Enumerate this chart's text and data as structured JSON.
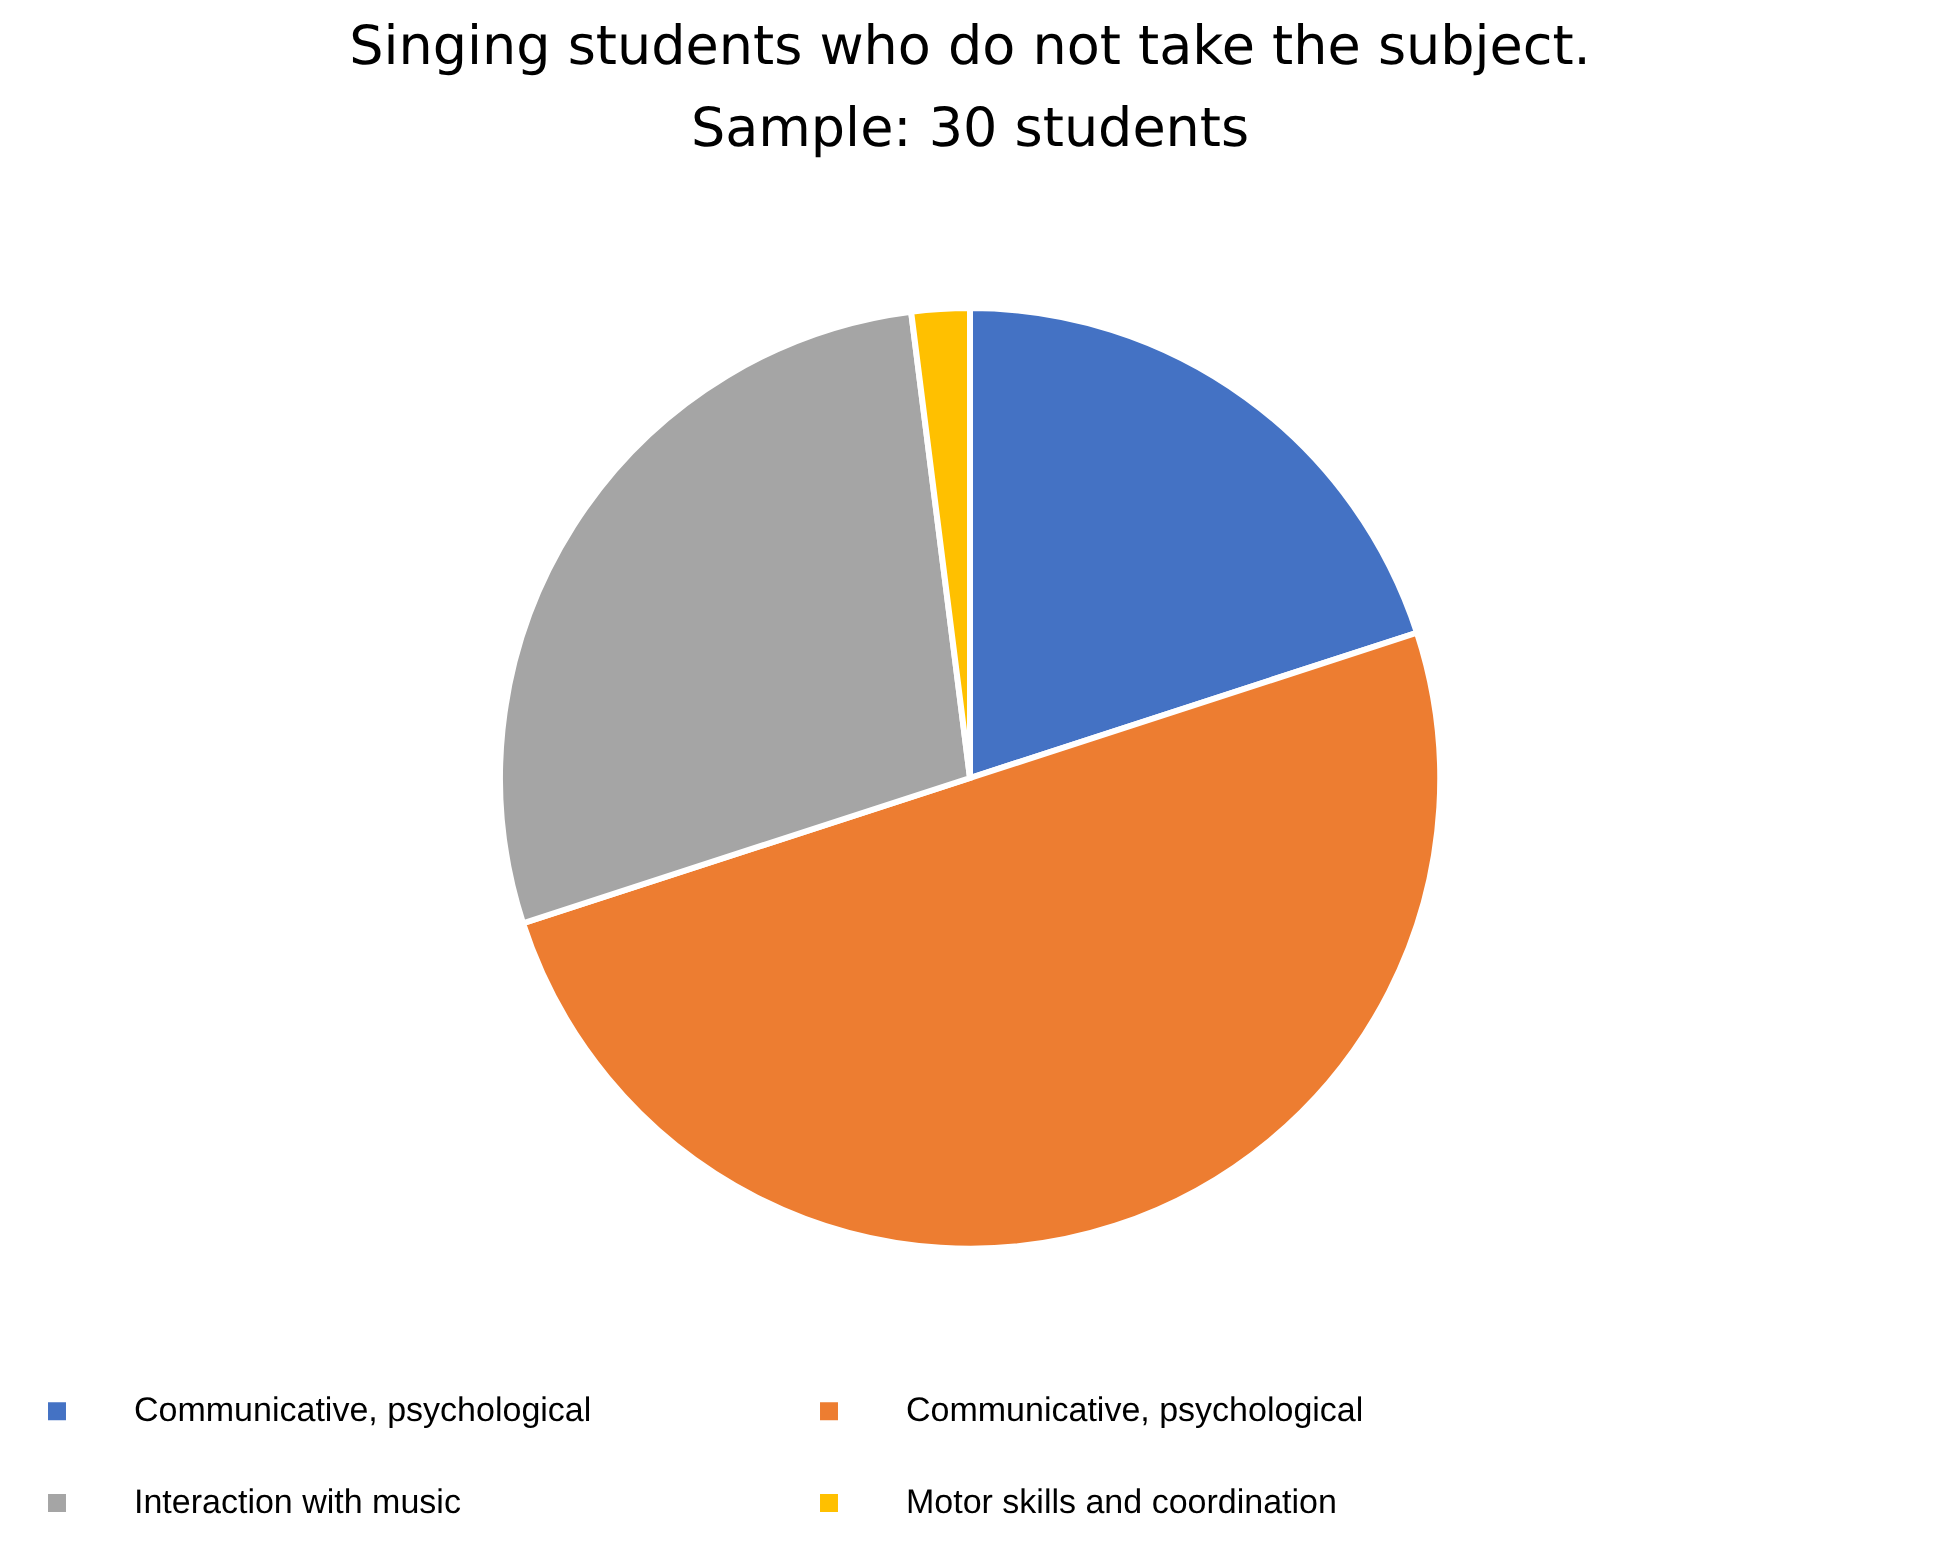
{
  "chart_data": {
    "type": "pie",
    "title": "Singing students who do not take the subject.",
    "subtitle": "Sample: 30 students",
    "categories": [
      "Communicative, psychological",
      "Communicative, psychological",
      "Interaction with music",
      "Motor skills and coordination"
    ],
    "values": [
      20,
      50,
      28,
      2
    ],
    "colors": [
      "#4472c4",
      "#ed7d31",
      "#a5a5a5",
      "#ffc000"
    ],
    "legend": "bottom"
  }
}
